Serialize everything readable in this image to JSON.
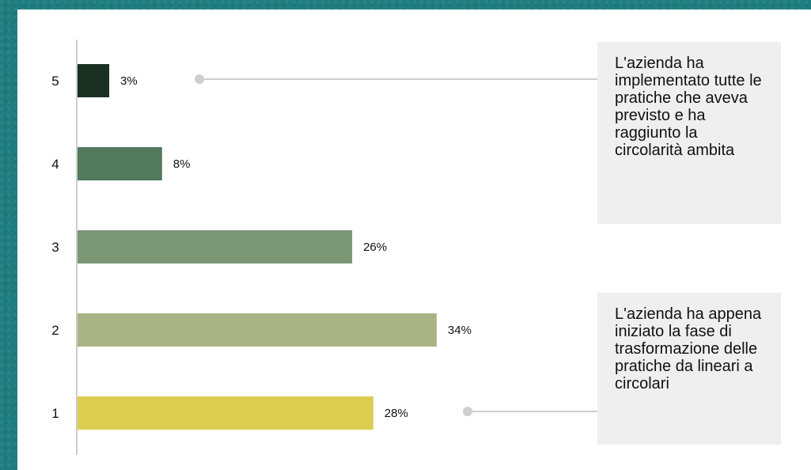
{
  "chart_data": {
    "type": "bar",
    "orientation": "horizontal",
    "categories": [
      "5",
      "4",
      "3",
      "2",
      "1"
    ],
    "values": [
      3,
      8,
      26,
      34,
      28
    ],
    "value_labels": [
      "3%",
      "8%",
      "26%",
      "34%",
      "28%"
    ],
    "colors": [
      "#1a2e22",
      "#527a5d",
      "#7b9776",
      "#a8b483",
      "#dccd50"
    ],
    "xlim": [
      0,
      40
    ],
    "grid": false,
    "annotations": [
      {
        "target_category": "5",
        "text": "L'azienda ha implementato tutte le pratiche che aveva previsto e ha raggiunto la circolarità ambita"
      },
      {
        "target_category": "1",
        "text": "L'azienda ha appena iniziato la fase di trasformazione delle pratiche da lineari a circolari"
      }
    ]
  }
}
